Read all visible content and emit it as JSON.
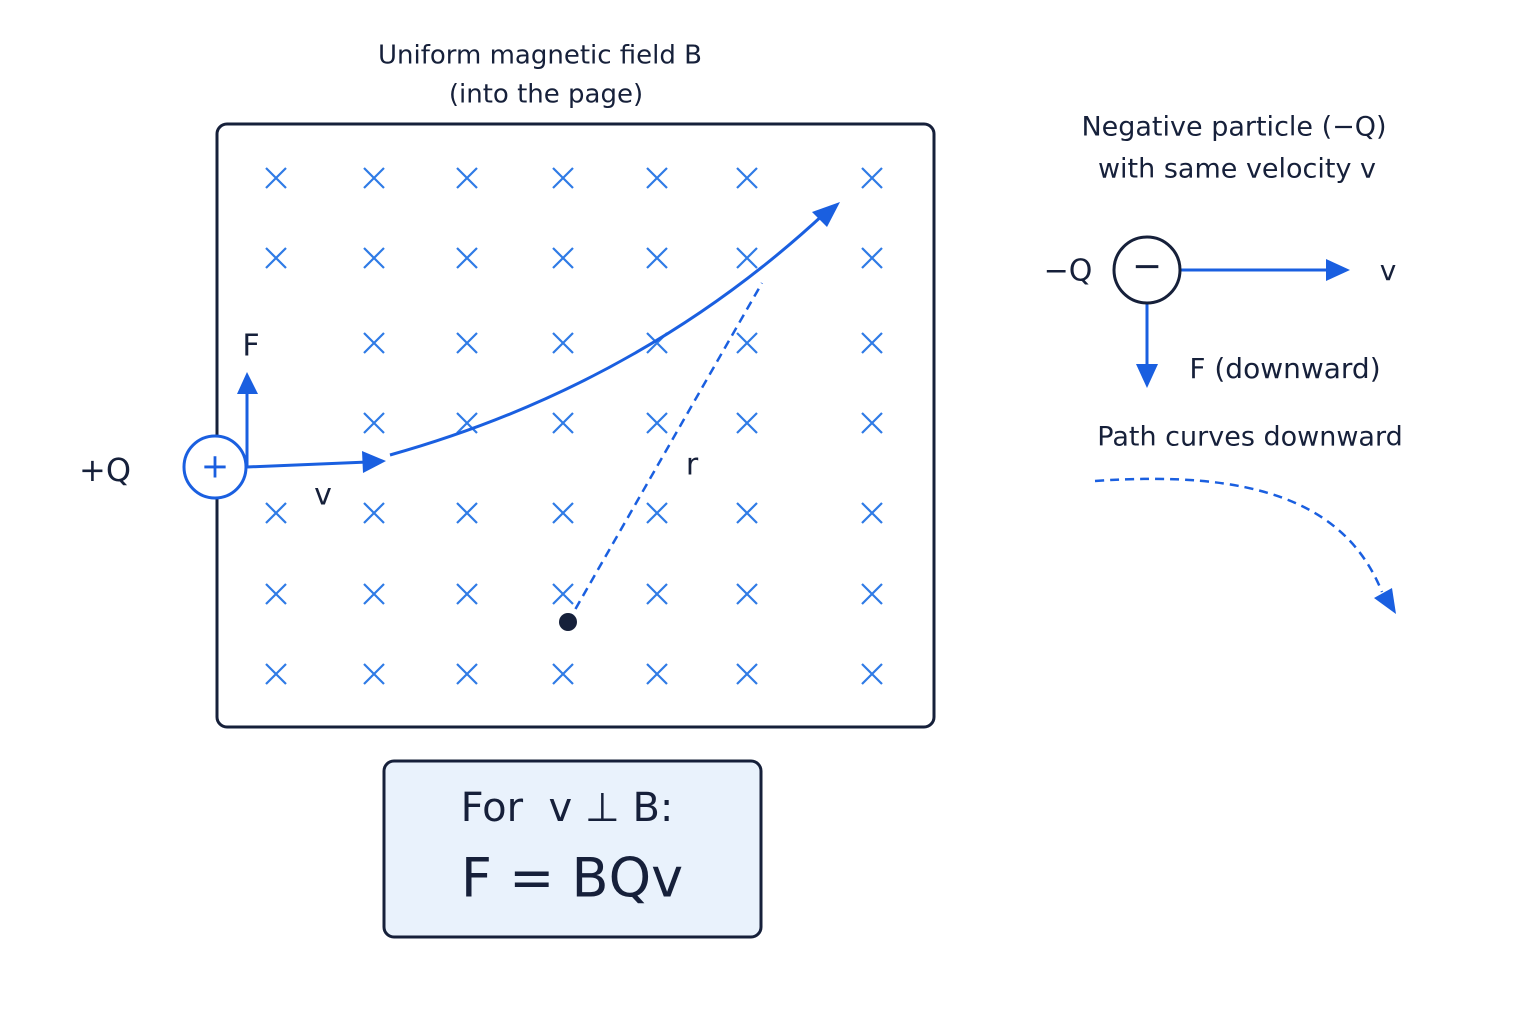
{
  "field": {
    "title_line1": "Uniform magnetic field B",
    "title_line2": "(into the page)"
  },
  "positive_particle": {
    "label": "+Q",
    "symbol": "+",
    "force": "F",
    "velocity": "v",
    "radius": "r"
  },
  "negative_particle": {
    "title_line1": "Negative particle (−Q)",
    "title_line2": "with same velocity v",
    "label": "−Q",
    "symbol": "−",
    "velocity": "v",
    "force": "F (downward)",
    "path_note": "Path curves downward"
  },
  "formula": {
    "condition": "For  v ⊥ B:",
    "equation": "F = BQv"
  }
}
